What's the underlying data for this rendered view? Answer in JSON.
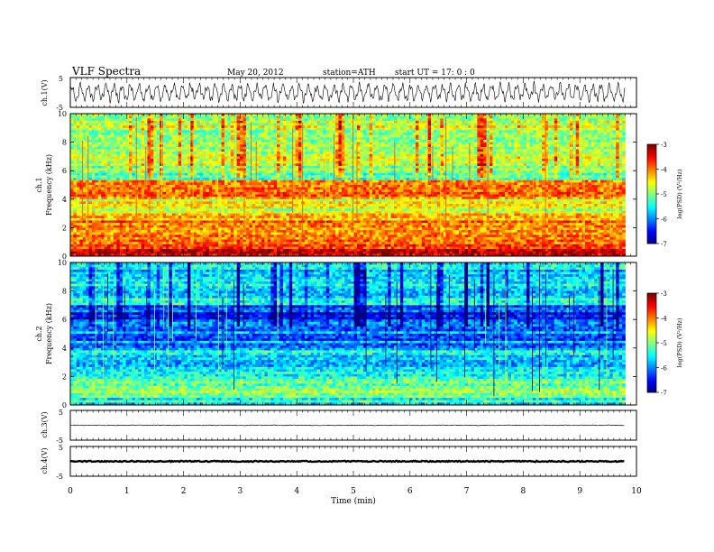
{
  "header": {
    "title": "VLF  Spectra",
    "date": "May 20, 2012",
    "station": "station=ATH",
    "start": "start  UT  =    17: 0  : 0"
  },
  "chart_data": [
    {
      "type": "line",
      "ylabel": "ch.1(V)",
      "ylim": [
        -5,
        5
      ],
      "yticks": [
        "5",
        "-5"
      ],
      "description_values": "oscillating waveform roughly between -3 V and +3 V",
      "xlim": [
        0,
        10
      ]
    },
    {
      "type": "heatmap",
      "ylabel": [
        "ch.1",
        "Frequency  (kHz)"
      ],
      "ylim": [
        0,
        10
      ],
      "yticks": [
        "0",
        "2",
        "4",
        "6",
        "8",
        "10"
      ],
      "xlim": [
        0,
        9.8
      ],
      "colorbar": {
        "label": "log(PSD) (V²/Hz)",
        "range": [
          -7,
          -3
        ],
        "ticks": [
          "-3",
          "-4",
          "-5",
          "-6",
          "-7"
        ]
      },
      "bands": [
        {
          "from": 0,
          "to": 0.5,
          "level": -3.2
        },
        {
          "from": 0.5,
          "to": 1.2,
          "level": -4.0
        },
        {
          "from": 1.2,
          "to": 2.8,
          "level": -4.1
        },
        {
          "from": 2.8,
          "to": 4.0,
          "level": -4.5
        },
        {
          "from": 4.0,
          "to": 5.3,
          "level": -3.8
        },
        {
          "from": 5.3,
          "to": 6.4,
          "level": -5.0
        },
        {
          "from": 6.4,
          "to": 10,
          "level": -4.8
        }
      ]
    },
    {
      "type": "heatmap",
      "ylabel": [
        "ch.2",
        "Frequency  (kHz)"
      ],
      "ylim": [
        0,
        10
      ],
      "yticks": [
        "0",
        "2",
        "4",
        "6",
        "8",
        "10"
      ],
      "xlim": [
        0,
        9.8
      ],
      "colorbar": {
        "label": "log(PSD) (V²/Hz)",
        "range": [
          -7,
          -3
        ],
        "ticks": [
          "-3",
          "-4",
          "-5",
          "-6",
          "-7"
        ]
      },
      "bands": [
        {
          "from": 0,
          "to": 0.5,
          "level": -5.5
        },
        {
          "from": 0.5,
          "to": 1.2,
          "level": -4.9
        },
        {
          "from": 1.2,
          "to": 2.5,
          "level": -5.3
        },
        {
          "from": 2.5,
          "to": 4.0,
          "level": -5.6
        },
        {
          "from": 4.0,
          "to": 6.0,
          "level": -6.0
        },
        {
          "from": 6.0,
          "to": 7.0,
          "level": -6.3
        },
        {
          "from": 7.0,
          "to": 10,
          "level": -5.6
        }
      ]
    },
    {
      "type": "line",
      "ylabel": "ch.3(V)",
      "ylim": [
        -5,
        5
      ],
      "yticks": [
        "5",
        "-5"
      ],
      "level_V": 0
    },
    {
      "type": "line",
      "ylabel": "ch.4(V)",
      "ylim": [
        -5,
        5
      ],
      "yticks": [
        "5",
        "-5"
      ],
      "level_V": 0
    }
  ],
  "xaxis": {
    "label": "Time  (min)",
    "ticks": [
      "0",
      "1",
      "2",
      "3",
      "4",
      "5",
      "6",
      "7",
      "8",
      "9",
      "10"
    ],
    "xlim": [
      0,
      10
    ]
  }
}
